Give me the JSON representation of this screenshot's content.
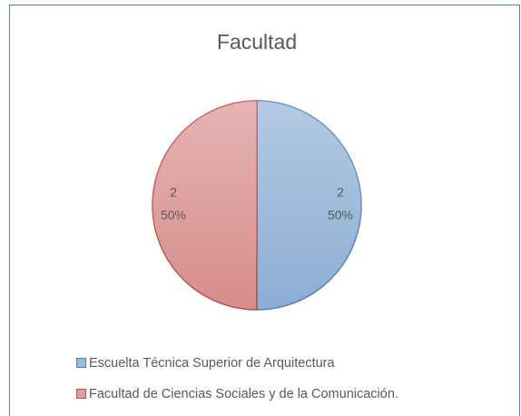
{
  "chart_data": {
    "type": "pie",
    "title": "Facultad",
    "categories": [
      "Escuelta Técnica Superior de Arquitectura",
      "Facultad de Ciencias Sociales y de la Comunicación."
    ],
    "values": [
      2,
      2
    ],
    "percent_labels": [
      "50%",
      "50%"
    ],
    "colors": [
      "#4f81bd",
      "#c0504d"
    ],
    "legend": "bottom-left"
  }
}
